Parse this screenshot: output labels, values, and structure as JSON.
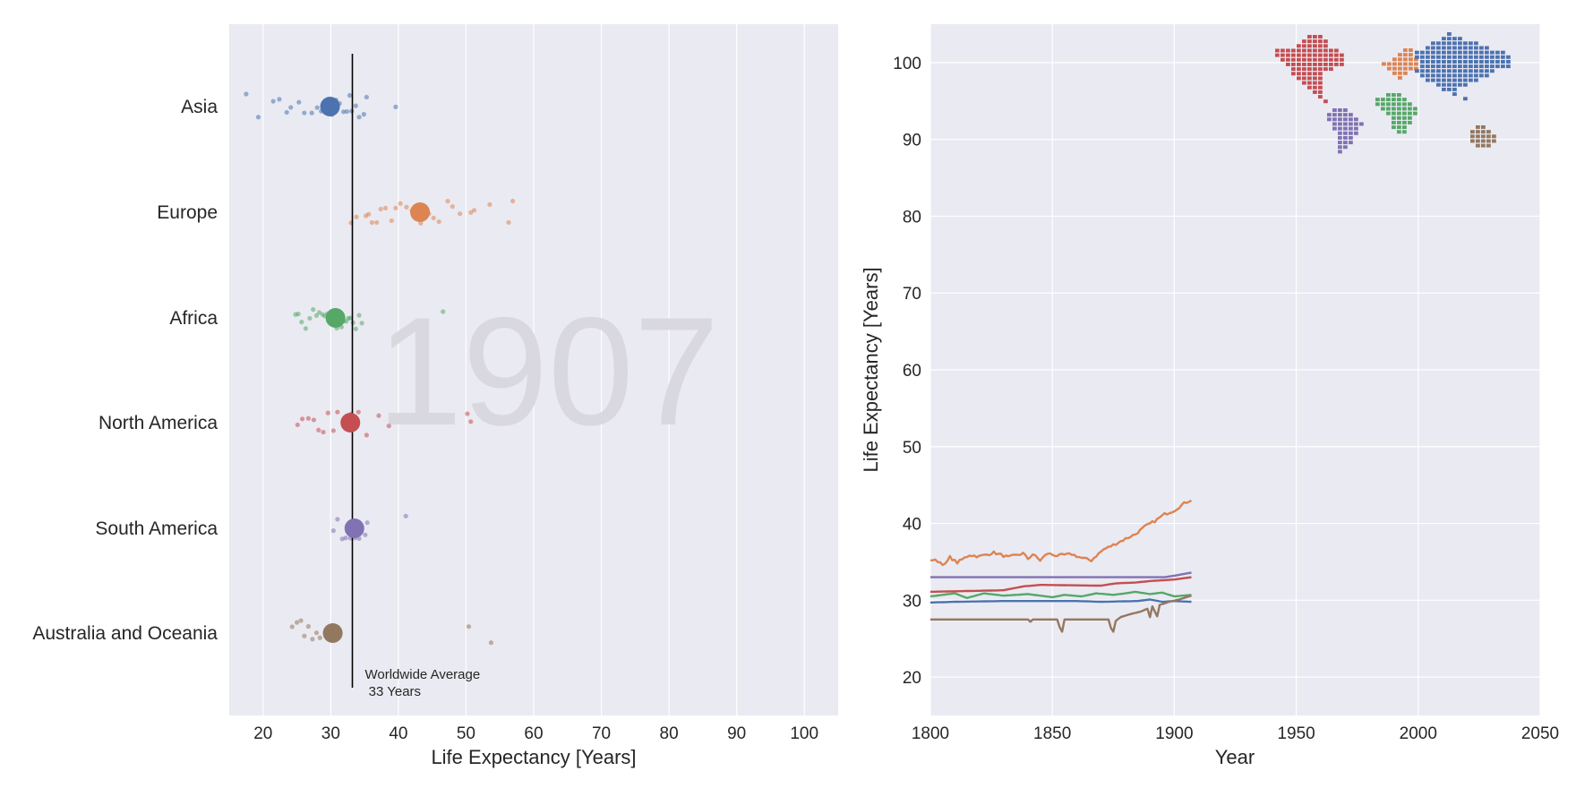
{
  "colors": {
    "panel_bg": "#EAEAF2",
    "grid": "#FFFFFF",
    "text": "#262626",
    "watermark": "#D8D8DE",
    "avg_line": "#000000",
    "Asia": "#4C72B0",
    "Europe": "#DD8452",
    "Africa": "#55A868",
    "North America": "#C44E52",
    "South America": "#8172B3",
    "Australia and Oceania": "#937860"
  },
  "chart_data": [
    {
      "id": "strip",
      "type": "scatter",
      "title": "",
      "year_label": "1907",
      "xlabel": "Life Expectancy [Years]",
      "xlim": [
        15,
        105
      ],
      "xticks": [
        20,
        30,
        40,
        50,
        60,
        70,
        80,
        90,
        100
      ],
      "categories": [
        "Asia",
        "Europe",
        "Africa",
        "North America",
        "South America",
        "Australia and Oceania"
      ],
      "means": [
        29.9,
        43.2,
        30.7,
        32.9,
        33.5,
        30.3
      ],
      "points": [
        [
          17.5,
          19.3,
          21.5,
          22.4,
          23.5,
          24.1,
          25.3,
          26.1,
          27.2,
          28.0,
          28.6,
          29.4,
          30.2,
          30.8,
          31.3,
          31.9,
          32.4,
          32.8,
          33.1,
          33.7,
          34.2,
          34.9,
          35.3,
          39.6
        ],
        [
          33.0,
          33.8,
          35.2,
          35.6,
          36.1,
          36.8,
          37.4,
          38.1,
          39.0,
          39.6,
          40.3,
          41.2,
          42.0,
          42.5,
          43.3,
          44.5,
          45.2,
          46.0,
          47.3,
          48.0,
          49.1,
          50.7,
          51.2,
          53.5,
          56.3,
          56.9
        ],
        [
          24.8,
          25.2,
          25.7,
          26.3,
          26.9,
          27.4,
          27.9,
          28.3,
          28.8,
          29.1,
          29.5,
          29.9,
          30.2,
          30.6,
          30.9,
          31.2,
          31.6,
          31.9,
          32.3,
          32.6,
          32.9,
          33.3,
          33.7,
          34.2,
          34.6,
          46.6
        ],
        [
          25.1,
          25.8,
          26.7,
          27.5,
          28.2,
          28.9,
          29.6,
          30.4,
          31.0,
          32.1,
          33.0,
          34.1,
          35.3,
          37.1,
          38.6,
          50.2,
          50.7
        ],
        [
          30.4,
          31.0,
          31.7,
          32.2,
          32.9,
          33.6,
          34.2,
          35.1,
          35.4,
          41.1
        ],
        [
          24.3,
          25.0,
          25.6,
          26.1,
          26.7,
          27.3,
          27.9,
          28.4,
          50.4,
          53.7
        ]
      ],
      "average": {
        "value": 33.2,
        "label_line1": "Worldwide Average",
        "label_line2": " 33 Years"
      }
    },
    {
      "id": "timeseries",
      "type": "line",
      "xlabel": "Year",
      "ylabel": "Life Expectancy [Years]",
      "xlim": [
        1800,
        2050
      ],
      "ylim": [
        15,
        105
      ],
      "xticks": [
        1800,
        1850,
        1900,
        1950,
        2000,
        2050
      ],
      "yticks": [
        20,
        30,
        40,
        50,
        60,
        70,
        80,
        90,
        100
      ],
      "series": [
        {
          "name": "Europe",
          "keyframes": [
            [
              1800,
              35.3
            ],
            [
              1803,
              35.1
            ],
            [
              1806,
              34.6
            ],
            [
              1808,
              35.6
            ],
            [
              1811,
              34.9
            ],
            [
              1816,
              35.9
            ],
            [
              1820,
              35.7
            ],
            [
              1826,
              36.2
            ],
            [
              1832,
              35.6
            ],
            [
              1838,
              36.1
            ],
            [
              1840,
              35.4
            ],
            [
              1842,
              36.0
            ],
            [
              1845,
              35.2
            ],
            [
              1848,
              36.1
            ],
            [
              1852,
              35.8
            ],
            [
              1858,
              36.0
            ],
            [
              1862,
              35.5
            ],
            [
              1866,
              35.2
            ],
            [
              1868,
              35.8
            ],
            [
              1871,
              36.6
            ],
            [
              1875,
              37.2
            ],
            [
              1880,
              38.0
            ],
            [
              1884,
              38.6
            ],
            [
              1888,
              39.6
            ],
            [
              1892,
              40.3
            ],
            [
              1896,
              41.2
            ],
            [
              1900,
              41.7
            ],
            [
              1904,
              42.6
            ],
            [
              1907,
              43.1
            ]
          ]
        },
        {
          "name": "South America",
          "keyframes": [
            [
              1800,
              33.0
            ],
            [
              1890,
              33.0
            ],
            [
              1896,
              33.0
            ],
            [
              1900,
              33.2
            ],
            [
              1907,
              33.6
            ]
          ]
        },
        {
          "name": "North America",
          "keyframes": [
            [
              1800,
              31.1
            ],
            [
              1830,
              31.3
            ],
            [
              1838,
              31.8
            ],
            [
              1845,
              32.0
            ],
            [
              1870,
              31.9
            ],
            [
              1876,
              32.2
            ],
            [
              1884,
              32.3
            ],
            [
              1890,
              32.5
            ],
            [
              1900,
              32.7
            ],
            [
              1907,
              33.0
            ]
          ]
        },
        {
          "name": "Africa",
          "keyframes": [
            [
              1800,
              30.5
            ],
            [
              1805,
              30.7
            ],
            [
              1810,
              30.9
            ],
            [
              1815,
              30.3
            ],
            [
              1822,
              30.9
            ],
            [
              1830,
              30.6
            ],
            [
              1840,
              30.8
            ],
            [
              1850,
              30.4
            ],
            [
              1855,
              30.7
            ],
            [
              1862,
              30.5
            ],
            [
              1868,
              30.9
            ],
            [
              1875,
              30.7
            ],
            [
              1880,
              30.9
            ],
            [
              1884,
              31.1
            ],
            [
              1890,
              30.8
            ],
            [
              1895,
              31.0
            ],
            [
              1900,
              30.5
            ],
            [
              1907,
              30.7
            ]
          ]
        },
        {
          "name": "Asia",
          "keyframes": [
            [
              1800,
              29.7
            ],
            [
              1810,
              29.8
            ],
            [
              1830,
              29.9
            ],
            [
              1860,
              29.9
            ],
            [
              1870,
              29.8
            ],
            [
              1885,
              29.9
            ],
            [
              1890,
              30.1
            ],
            [
              1895,
              29.8
            ],
            [
              1900,
              29.9
            ],
            [
              1907,
              29.8
            ]
          ]
        },
        {
          "name": "Australia and Oceania",
          "keyframes": [
            [
              1800,
              27.5
            ],
            [
              1840,
              27.5
            ],
            [
              1841,
              27.2
            ],
            [
              1842,
              27.5
            ],
            [
              1852,
              27.5
            ],
            [
              1853,
              26.5
            ],
            [
              1854,
              25.9
            ],
            [
              1855,
              27.5
            ],
            [
              1873,
              27.5
            ],
            [
              1874,
              26.4
            ],
            [
              1875,
              25.9
            ],
            [
              1876,
              27.3
            ],
            [
              1878,
              27.8
            ],
            [
              1882,
              28.2
            ],
            [
              1886,
              28.5
            ],
            [
              1889,
              28.9
            ],
            [
              1890,
              27.8
            ],
            [
              1891,
              29.2
            ],
            [
              1893,
              27.9
            ],
            [
              1894,
              29.4
            ],
            [
              1898,
              29.8
            ],
            [
              1902,
              30.1
            ],
            [
              1907,
              30.6
            ]
          ]
        }
      ],
      "inset_map": {
        "content": "pixel world map colored by continent"
      }
    }
  ]
}
